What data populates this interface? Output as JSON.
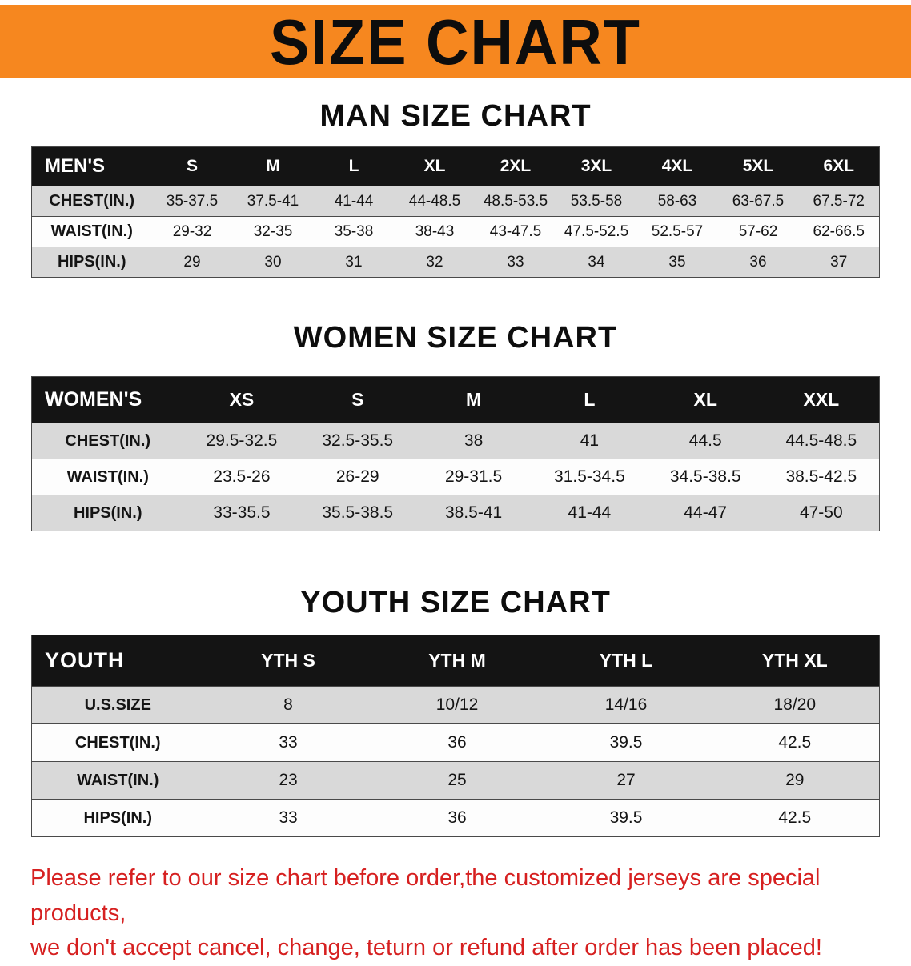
{
  "banner": {
    "title": "SIZE CHART"
  },
  "colors": {
    "banner_bg": "#f6871f",
    "table_header_bg": "#141414",
    "row_shade": "#d9d9d9",
    "disclaimer_red": "#d62020"
  },
  "sections": [
    {
      "id": "men",
      "title": "MAN SIZE CHART",
      "table": {
        "header": [
          "MEN'S",
          "S",
          "M",
          "L",
          "XL",
          "2XL",
          "3XL",
          "4XL",
          "5XL",
          "6XL"
        ],
        "rows": [
          [
            "CHEST(IN.)",
            "35-37.5",
            "37.5-41",
            "41-44",
            "44-48.5",
            "48.5-53.5",
            "53.5-58",
            "58-63",
            "63-67.5",
            "67.5-72"
          ],
          [
            "WAIST(IN.)",
            "29-32",
            "32-35",
            "35-38",
            "38-43",
            "43-47.5",
            "47.5-52.5",
            "52.5-57",
            "57-62",
            "62-66.5"
          ],
          [
            "HIPS(IN.)",
            "29",
            "30",
            "31",
            "32",
            "33",
            "34",
            "35",
            "36",
            "37"
          ]
        ]
      }
    },
    {
      "id": "women",
      "title": "WOMEN SIZE CHART",
      "table": {
        "header": [
          "WOMEN'S",
          "XS",
          "S",
          "M",
          "L",
          "XL",
          "XXL"
        ],
        "rows": [
          [
            "CHEST(IN.)",
            "29.5-32.5",
            "32.5-35.5",
            "38",
            "41",
            "44.5",
            "44.5-48.5"
          ],
          [
            "WAIST(IN.)",
            "23.5-26",
            "26-29",
            "29-31.5",
            "31.5-34.5",
            "34.5-38.5",
            "38.5-42.5"
          ],
          [
            "HIPS(IN.)",
            "33-35.5",
            "35.5-38.5",
            "38.5-41",
            "41-44",
            "44-47",
            "47-50"
          ]
        ]
      }
    },
    {
      "id": "youth",
      "title": "YOUTH SIZE CHART",
      "table": {
        "header": [
          "YOUTH",
          "YTH S",
          "YTH M",
          "YTH L",
          "YTH XL"
        ],
        "rows": [
          [
            "U.S.SIZE",
            "8",
            "10/12",
            "14/16",
            "18/20"
          ],
          [
            "CHEST(IN.)",
            "33",
            "36",
            "39.5",
            "42.5"
          ],
          [
            "WAIST(IN.)",
            "23",
            "25",
            "27",
            "29"
          ],
          [
            "HIPS(IN.)",
            "33",
            "36",
            "39.5",
            "42.5"
          ]
        ]
      }
    }
  ],
  "footer": {
    "lines": [
      "Please refer to our size chart before order,the customized jerseys are special products,",
      "we don't accept cancel, change, teturn or refund after order has been placed!"
    ]
  }
}
